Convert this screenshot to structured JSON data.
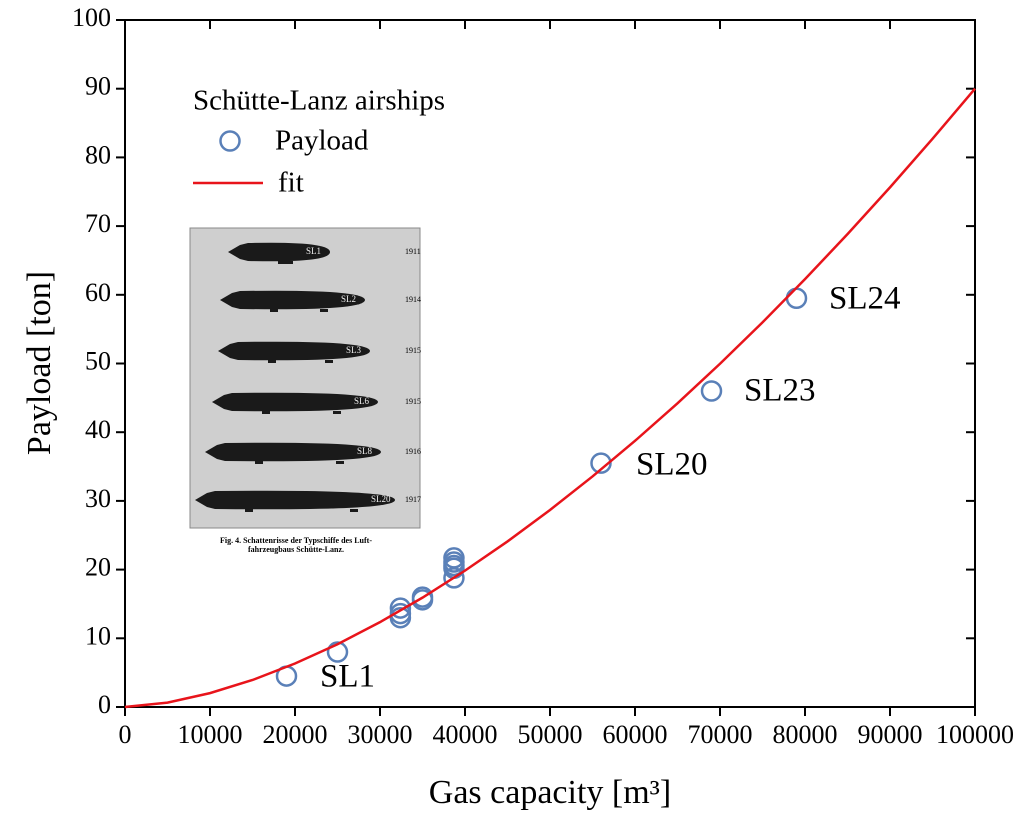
{
  "chart_data": {
    "type": "scatter",
    "x_label": "Gas capacity [m³]",
    "y_label": "Payload [ton]",
    "xlim": [
      0,
      100000
    ],
    "ylim": [
      0,
      100
    ],
    "xticks": [
      0,
      10000,
      20000,
      30000,
      40000,
      50000,
      60000,
      70000,
      80000,
      90000,
      100000
    ],
    "yticks": [
      0,
      10,
      20,
      30,
      40,
      50,
      60,
      70,
      80,
      90,
      100
    ],
    "legend_title": "Schütte-Lanz airships",
    "legend": "upper left",
    "series": [
      {
        "name": "Payload",
        "type": "scatter",
        "color": "#5a80b8",
        "x": [
          19000,
          25000,
          32400,
          32400,
          32400,
          35000,
          35000,
          38700,
          38700,
          38700,
          38700,
          38700,
          56000,
          69000,
          79000
        ],
        "values": [
          4.5,
          8,
          13,
          13.6,
          14.4,
          15.6,
          16,
          18.8,
          20.2,
          20.6,
          21.1,
          21.7,
          35.5,
          46,
          59.5
        ]
      },
      {
        "name": "fit",
        "type": "line",
        "color": "#e8141b",
        "x": [
          0,
          5000,
          10000,
          15000,
          20000,
          25000,
          30000,
          35000,
          40000,
          45000,
          50000,
          55000,
          60000,
          65000,
          70000,
          75000,
          80000,
          85000,
          90000,
          95000,
          100000
        ],
        "values": [
          0,
          0.64,
          2.02,
          3.93,
          6.33,
          9.14,
          12.35,
          15.92,
          19.85,
          24.1,
          28.68,
          33.56,
          38.74,
          44.21,
          49.96,
          55.99,
          62.28,
          68.83,
          75.64,
          82.7,
          90
        ]
      }
    ],
    "annotations": [
      "SL1",
      "SL20",
      "SL23",
      "SL24"
    ],
    "inset": {
      "ships": [
        {
          "label": "SL1",
          "year": "1911"
        },
        {
          "label": "SL2",
          "year": "1914"
        },
        {
          "label": "SL3",
          "year": "1915"
        },
        {
          "label": "SL6",
          "year": "1915"
        },
        {
          "label": "SL8",
          "year": "1916"
        },
        {
          "label": "SL20",
          "year": "1917"
        }
      ],
      "caption": [
        "Fig. 4.   Schattenrisse der Typschiffe des Luft-",
        "fahrzeugbaus Schütte-Lanz."
      ]
    }
  }
}
